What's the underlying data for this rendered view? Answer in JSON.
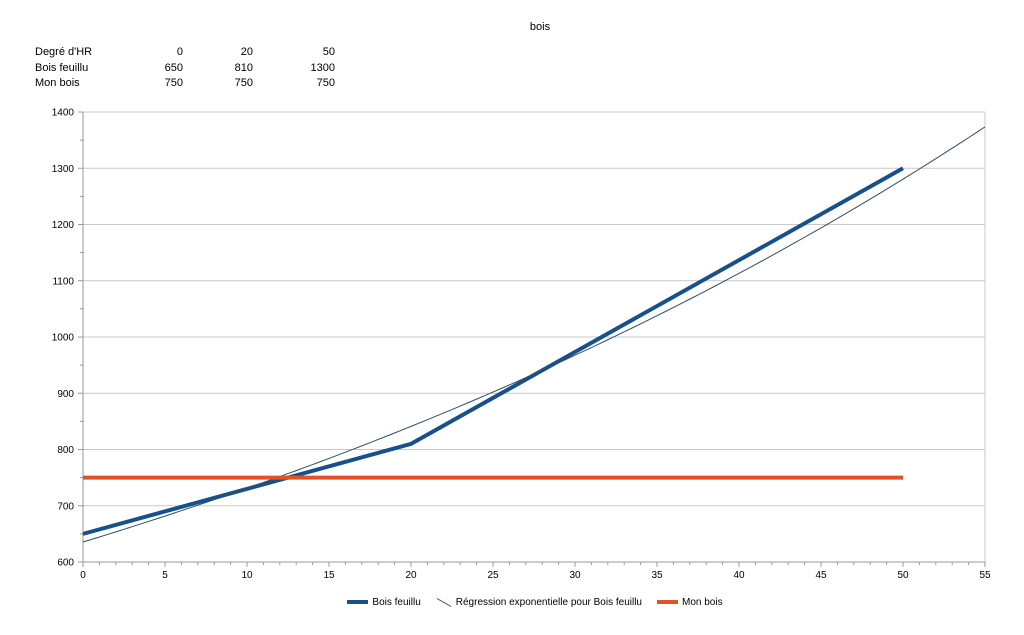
{
  "title": "bois",
  "table": {
    "rows": [
      {
        "cells": [
          "Degré d'HR",
          "0",
          "20",
          "50"
        ]
      },
      {
        "cells": [
          "Bois feuillu",
          "650",
          "810",
          "1300"
        ]
      },
      {
        "cells": [
          "Mon bois",
          "750",
          "750",
          "750"
        ]
      }
    ]
  },
  "chart_data": {
    "type": "line",
    "title": "bois",
    "xlabel": "",
    "ylabel": "",
    "x_axis": {
      "min": 0,
      "max": 55,
      "major_step": 5,
      "minor_step": 1
    },
    "y_axis": {
      "min": 600,
      "max": 1400,
      "major_step": 100,
      "minor_step": 50
    },
    "grid": {
      "gridline_color": "#c8c8c8",
      "axis_color": "#9a9a9a"
    },
    "legend_position": "bottom",
    "series": [
      {
        "name": "Bois feuillu",
        "color": "#17508a",
        "stroke_width": 4,
        "marker": "thick-line",
        "x": [
          0,
          20,
          50
        ],
        "y": [
          650,
          810,
          1300
        ]
      },
      {
        "name": "Régression exponentielle pour Bois feuillu",
        "color": "#2f4d63",
        "stroke_width": 1,
        "marker": "thin-diagonal-line",
        "regression": {
          "kind": "exponential",
          "a": 635.5,
          "b": 0.0140135,
          "x_from": 0,
          "x_to": 55
        }
      },
      {
        "name": "Mon bois",
        "color": "#e25227",
        "stroke_width": 4,
        "marker": "thick-line",
        "x": [
          0,
          20,
          50
        ],
        "y": [
          750,
          750,
          750
        ]
      }
    ]
  }
}
